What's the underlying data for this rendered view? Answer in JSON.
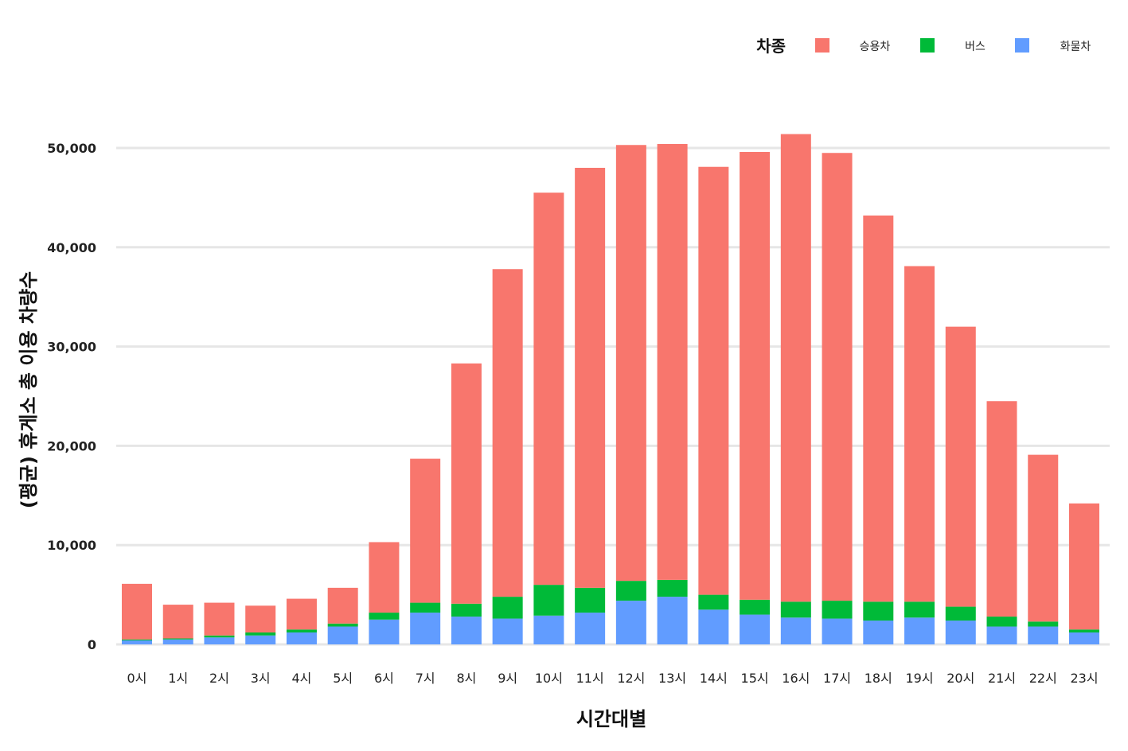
{
  "chart_data": {
    "type": "bar",
    "stacked": true,
    "xlabel": "시간대별",
    "ylabel": "(평균) 휴게소 총 이용 차량수",
    "ylim": [
      0,
      53000
    ],
    "yticks": [
      0,
      10000,
      20000,
      30000,
      40000,
      50000
    ],
    "ytick_labels": [
      "0",
      "10,000",
      "20,000",
      "30,000",
      "40,000",
      "50,000"
    ],
    "grid": true,
    "legend": {
      "title": "차종",
      "position": "top-right",
      "order": [
        "승용차",
        "버스",
        "화물차"
      ]
    },
    "categories": [
      "0시",
      "1시",
      "2시",
      "3시",
      "4시",
      "5시",
      "6시",
      "7시",
      "8시",
      "9시",
      "10시",
      "11시",
      "12시",
      "13시",
      "14시",
      "15시",
      "16시",
      "17시",
      "18시",
      "19시",
      "20시",
      "21시",
      "22시",
      "23시"
    ],
    "series": [
      {
        "name": "화물차",
        "color": "#619cff",
        "values": [
          400,
          500,
          700,
          900,
          1200,
          1800,
          2500,
          3200,
          2800,
          2600,
          2900,
          3200,
          4400,
          4800,
          3500,
          3000,
          2700,
          2600,
          2400,
          2700,
          2400,
          1800,
          1800,
          1200
        ]
      },
      {
        "name": "버스",
        "color": "#00ba38",
        "values": [
          100,
          100,
          200,
          300,
          300,
          300,
          700,
          1000,
          1300,
          2200,
          3100,
          2500,
          2000,
          1700,
          1500,
          1500,
          1600,
          1800,
          1900,
          1600,
          1400,
          1000,
          500,
          300
        ]
      },
      {
        "name": "승용차",
        "color": "#f8766d",
        "values": [
          5600,
          3400,
          3300,
          2700,
          3100,
          3600,
          7100,
          14500,
          24200,
          33000,
          39500,
          42300,
          43900,
          43900,
          43100,
          45100,
          47100,
          45100,
          38900,
          33800,
          28200,
          21700,
          16800,
          12700
        ]
      }
    ]
  }
}
